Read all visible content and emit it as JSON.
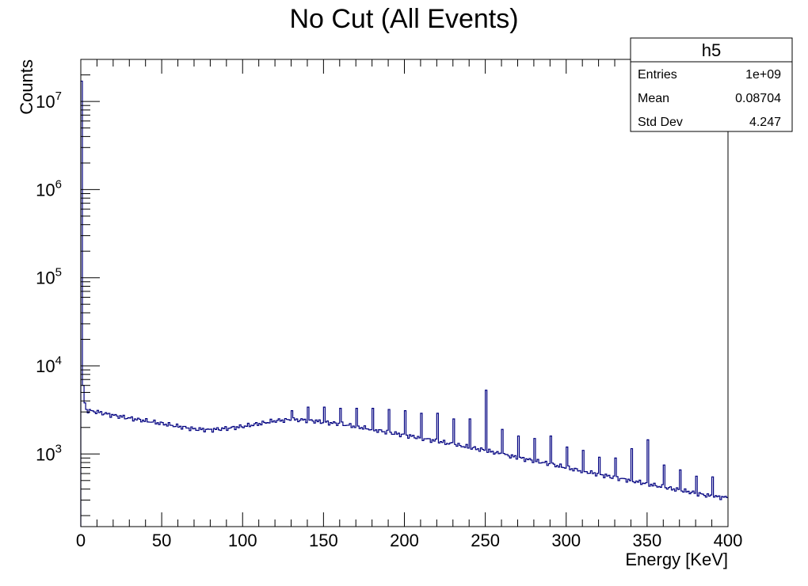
{
  "chart_data": {
    "type": "histogram",
    "title": "No Cut (All Events)",
    "xlabel": "Energy [KeV]",
    "ylabel": "Counts",
    "xlim": [
      0,
      400
    ],
    "ylim": [
      150,
      30000000
    ],
    "y_scale": "log",
    "x_ticks": [
      0,
      50,
      100,
      150,
      200,
      250,
      300,
      350,
      400
    ],
    "x_tick_labels": [
      "0",
      "50",
      "100",
      "150",
      "200",
      "250",
      "300",
      "350",
      "400"
    ],
    "y_ticks": [
      1000,
      10000,
      100000,
      1000000,
      10000000
    ],
    "y_tick_labels": [
      {
        "base": "10",
        "exp": "3"
      },
      {
        "base": "10",
        "exp": "4"
      },
      {
        "base": "10",
        "exp": "5"
      },
      {
        "base": "10",
        "exp": "6"
      },
      {
        "base": "10",
        "exp": "7"
      }
    ],
    "line_color": "#000080",
    "bin_width": 1,
    "continuum": [
      [
        0,
        3300
      ],
      [
        5,
        3100
      ],
      [
        10,
        3000
      ],
      [
        20,
        2750
      ],
      [
        30,
        2550
      ],
      [
        40,
        2380
      ],
      [
        50,
        2220
      ],
      [
        60,
        2060
      ],
      [
        70,
        1920
      ],
      [
        80,
        1880
      ],
      [
        90,
        1950
      ],
      [
        100,
        2050
      ],
      [
        110,
        2200
      ],
      [
        120,
        2380
      ],
      [
        130,
        2450
      ],
      [
        140,
        2420
      ],
      [
        150,
        2300
      ],
      [
        160,
        2200
      ],
      [
        170,
        2050
      ],
      [
        180,
        1900
      ],
      [
        190,
        1760
      ],
      [
        200,
        1640
      ],
      [
        210,
        1520
      ],
      [
        220,
        1400
      ],
      [
        230,
        1290
      ],
      [
        240,
        1190
      ],
      [
        250,
        1100
      ],
      [
        260,
        1000
      ],
      [
        270,
        910
      ],
      [
        280,
        840
      ],
      [
        290,
        770
      ],
      [
        300,
        700
      ],
      [
        310,
        640
      ],
      [
        320,
        590
      ],
      [
        330,
        540
      ],
      [
        340,
        500
      ],
      [
        350,
        460
      ],
      [
        360,
        420
      ],
      [
        370,
        390
      ],
      [
        380,
        360
      ],
      [
        390,
        330
      ],
      [
        400,
        320
      ]
    ],
    "peaks": [
      {
        "x": 0,
        "y": 17000000
      },
      {
        "x": 1,
        "y": 6000
      },
      {
        "x": 2,
        "y": 3800
      },
      {
        "x": 130,
        "y": 3100
      },
      {
        "x": 140,
        "y": 3400
      },
      {
        "x": 150,
        "y": 3400
      },
      {
        "x": 160,
        "y": 3300
      },
      {
        "x": 170,
        "y": 3300
      },
      {
        "x": 180,
        "y": 3300
      },
      {
        "x": 190,
        "y": 3200
      },
      {
        "x": 200,
        "y": 3100
      },
      {
        "x": 210,
        "y": 2900
      },
      {
        "x": 220,
        "y": 2900
      },
      {
        "x": 230,
        "y": 2500
      },
      {
        "x": 240,
        "y": 2500
      },
      {
        "x": 250,
        "y": 5300
      },
      {
        "x": 260,
        "y": 1900
      },
      {
        "x": 270,
        "y": 1600
      },
      {
        "x": 280,
        "y": 1500
      },
      {
        "x": 290,
        "y": 1600
      },
      {
        "x": 300,
        "y": 1200
      },
      {
        "x": 310,
        "y": 1100
      },
      {
        "x": 320,
        "y": 920
      },
      {
        "x": 330,
        "y": 900
      },
      {
        "x": 340,
        "y": 1150
      },
      {
        "x": 350,
        "y": 1450
      },
      {
        "x": 360,
        "y": 750
      },
      {
        "x": 370,
        "y": 660
      },
      {
        "x": 380,
        "y": 560
      },
      {
        "x": 390,
        "y": 550
      }
    ],
    "stats_box": {
      "title": "h5",
      "rows": [
        {
          "label": "Entries",
          "value": "1e+09"
        },
        {
          "label": "Mean",
          "value": "0.08704"
        },
        {
          "label": "Std Dev",
          "value": "4.247"
        }
      ]
    }
  }
}
